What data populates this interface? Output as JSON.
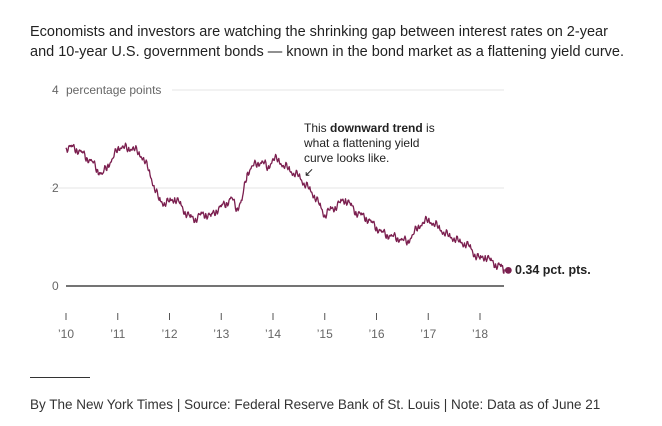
{
  "intro": "Economists and investors are watching the shrinking gap between interest rates on 2-year and 10-year U.S. government bonds — known in the bond market as a flattening yield curve.",
  "credit": "By The New York Times | Source: Federal Reserve Bank of St. Louis | Note: Data as of June 21",
  "colors": {
    "series": "#7b1f4f",
    "zero_line": "#222222",
    "grid": "#e6e6e6",
    "tick": "#666666"
  },
  "chart_data": {
    "type": "line",
    "title": "",
    "xlabel": "",
    "ylabel": "percentage points",
    "ylim": [
      0,
      4
    ],
    "xlim": [
      2010.0,
      2018.6
    ],
    "grid": true,
    "y_ticks": [
      {
        "value": 4,
        "label": "4",
        "unit": "percentage points"
      },
      {
        "value": 2,
        "label": "2"
      },
      {
        "value": 0,
        "label": "0"
      }
    ],
    "x_ticks": [
      {
        "value": 2010,
        "label": "’10"
      },
      {
        "value": 2011,
        "label": "’11"
      },
      {
        "value": 2012,
        "label": "’12"
      },
      {
        "value": 2013,
        "label": "’13"
      },
      {
        "value": 2014,
        "label": "’14"
      },
      {
        "value": 2015,
        "label": "’15"
      },
      {
        "value": 2016,
        "label": "’16"
      },
      {
        "value": 2017,
        "label": "’17"
      },
      {
        "value": 2018,
        "label": "’18"
      }
    ],
    "series": [
      {
        "x": [
          2010.0,
          2010.1,
          2010.2,
          2010.3,
          2010.4,
          2010.5,
          2010.6,
          2010.7,
          2010.8,
          2010.9,
          2011.0,
          2011.1,
          2011.2,
          2011.3,
          2011.4,
          2011.5,
          2011.6,
          2011.7,
          2011.8,
          2011.9,
          2012.0,
          2012.1,
          2012.2,
          2012.3,
          2012.4,
          2012.5,
          2012.6,
          2012.7,
          2012.8,
          2012.9,
          2013.0,
          2013.1,
          2013.2,
          2013.3,
          2013.4,
          2013.5,
          2013.6,
          2013.7,
          2013.8,
          2013.9,
          2014.0,
          2014.1,
          2014.2,
          2014.3,
          2014.4,
          2014.5,
          2014.6,
          2014.7,
          2014.8,
          2014.9,
          2015.0,
          2015.1,
          2015.2,
          2015.3,
          2015.4,
          2015.5,
          2015.6,
          2015.7,
          2015.8,
          2015.9,
          2016.0,
          2016.1,
          2016.2,
          2016.3,
          2016.4,
          2016.5,
          2016.6,
          2016.7,
          2016.8,
          2016.9,
          2017.0,
          2017.1,
          2017.2,
          2017.3,
          2017.4,
          2017.5,
          2017.6,
          2017.7,
          2017.8,
          2017.9,
          2018.0,
          2018.1,
          2018.2,
          2018.3,
          2018.4,
          2018.47
        ],
        "values": [
          2.82,
          2.84,
          2.8,
          2.73,
          2.62,
          2.55,
          2.38,
          2.28,
          2.45,
          2.6,
          2.81,
          2.86,
          2.78,
          2.84,
          2.7,
          2.62,
          2.35,
          2.05,
          1.75,
          1.7,
          1.72,
          1.8,
          1.68,
          1.52,
          1.4,
          1.38,
          1.45,
          1.48,
          1.42,
          1.55,
          1.62,
          1.7,
          1.8,
          1.58,
          1.75,
          2.3,
          2.45,
          2.5,
          2.55,
          2.4,
          2.6,
          2.58,
          2.46,
          2.4,
          2.3,
          2.25,
          2.1,
          1.98,
          1.85,
          1.65,
          1.45,
          1.55,
          1.62,
          1.7,
          1.78,
          1.65,
          1.52,
          1.45,
          1.4,
          1.3,
          1.2,
          1.1,
          1.05,
          1.02,
          0.98,
          0.95,
          0.9,
          1.05,
          1.2,
          1.3,
          1.35,
          1.28,
          1.2,
          1.1,
          1.02,
          0.98,
          0.9,
          0.88,
          0.8,
          0.65,
          0.55,
          0.62,
          0.52,
          0.45,
          0.4,
          0.34
        ]
      }
    ],
    "annotations": [
      {
        "text_prefix": "This ",
        "text_bold": "downward trend",
        "text_suffix": " is",
        "line2": "what a flattening yield",
        "line3": "curve looks like.",
        "arrow": "↙"
      }
    ],
    "end_label": "0.34 pct. pts."
  }
}
